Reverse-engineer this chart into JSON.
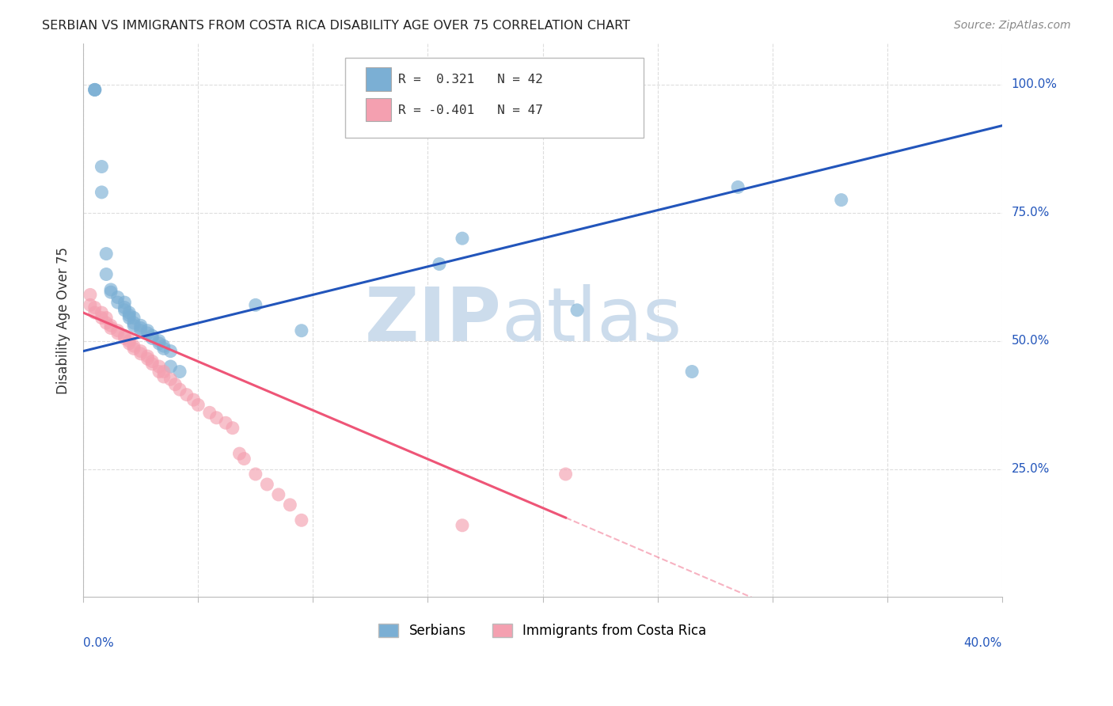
{
  "title": "SERBIAN VS IMMIGRANTS FROM COSTA RICA DISABILITY AGE OVER 75 CORRELATION CHART",
  "source": "Source: ZipAtlas.com",
  "ylabel": "Disability Age Over 75",
  "xlim": [
    0.0,
    0.4
  ],
  "ylim": [
    0.0,
    1.08
  ],
  "blue_color": "#7bafd4",
  "pink_color": "#f4a0b0",
  "blue_line_color": "#2255bb",
  "pink_line_color": "#ee5577",
  "blue_line": [
    [
      0.0,
      0.48
    ],
    [
      0.4,
      0.92
    ]
  ],
  "pink_line_solid": [
    [
      0.0,
      0.555
    ],
    [
      0.21,
      0.155
    ]
  ],
  "pink_line_dash": [
    [
      0.21,
      0.155
    ],
    [
      0.4,
      -0.21
    ]
  ],
  "blue_scatter": [
    [
      0.005,
      0.99
    ],
    [
      0.005,
      0.99
    ],
    [
      0.005,
      0.99
    ],
    [
      0.008,
      0.84
    ],
    [
      0.008,
      0.79
    ],
    [
      0.01,
      0.67
    ],
    [
      0.01,
      0.63
    ],
    [
      0.012,
      0.6
    ],
    [
      0.012,
      0.595
    ],
    [
      0.015,
      0.585
    ],
    [
      0.015,
      0.575
    ],
    [
      0.018,
      0.575
    ],
    [
      0.018,
      0.565
    ],
    [
      0.018,
      0.56
    ],
    [
      0.02,
      0.555
    ],
    [
      0.02,
      0.55
    ],
    [
      0.02,
      0.545
    ],
    [
      0.022,
      0.545
    ],
    [
      0.022,
      0.535
    ],
    [
      0.022,
      0.53
    ],
    [
      0.025,
      0.53
    ],
    [
      0.025,
      0.525
    ],
    [
      0.025,
      0.52
    ],
    [
      0.028,
      0.52
    ],
    [
      0.028,
      0.515
    ],
    [
      0.03,
      0.51
    ],
    [
      0.03,
      0.505
    ],
    [
      0.033,
      0.5
    ],
    [
      0.033,
      0.495
    ],
    [
      0.035,
      0.49
    ],
    [
      0.035,
      0.485
    ],
    [
      0.038,
      0.48
    ],
    [
      0.038,
      0.45
    ],
    [
      0.042,
      0.44
    ],
    [
      0.075,
      0.57
    ],
    [
      0.095,
      0.52
    ],
    [
      0.155,
      0.65
    ],
    [
      0.165,
      0.7
    ],
    [
      0.215,
      0.56
    ],
    [
      0.265,
      0.44
    ],
    [
      0.285,
      0.8
    ],
    [
      0.33,
      0.775
    ]
  ],
  "pink_scatter": [
    [
      0.003,
      0.59
    ],
    [
      0.003,
      0.57
    ],
    [
      0.005,
      0.565
    ],
    [
      0.005,
      0.555
    ],
    [
      0.008,
      0.555
    ],
    [
      0.008,
      0.545
    ],
    [
      0.01,
      0.545
    ],
    [
      0.01,
      0.535
    ],
    [
      0.012,
      0.53
    ],
    [
      0.012,
      0.525
    ],
    [
      0.015,
      0.52
    ],
    [
      0.015,
      0.515
    ],
    [
      0.018,
      0.51
    ],
    [
      0.018,
      0.505
    ],
    [
      0.02,
      0.5
    ],
    [
      0.02,
      0.495
    ],
    [
      0.022,
      0.49
    ],
    [
      0.022,
      0.485
    ],
    [
      0.025,
      0.48
    ],
    [
      0.025,
      0.475
    ],
    [
      0.028,
      0.47
    ],
    [
      0.028,
      0.465
    ],
    [
      0.03,
      0.46
    ],
    [
      0.03,
      0.455
    ],
    [
      0.033,
      0.45
    ],
    [
      0.033,
      0.44
    ],
    [
      0.035,
      0.44
    ],
    [
      0.035,
      0.43
    ],
    [
      0.038,
      0.425
    ],
    [
      0.04,
      0.415
    ],
    [
      0.042,
      0.405
    ],
    [
      0.045,
      0.395
    ],
    [
      0.048,
      0.385
    ],
    [
      0.05,
      0.375
    ],
    [
      0.055,
      0.36
    ],
    [
      0.058,
      0.35
    ],
    [
      0.062,
      0.34
    ],
    [
      0.065,
      0.33
    ],
    [
      0.068,
      0.28
    ],
    [
      0.07,
      0.27
    ],
    [
      0.075,
      0.24
    ],
    [
      0.08,
      0.22
    ],
    [
      0.085,
      0.2
    ],
    [
      0.09,
      0.18
    ],
    [
      0.095,
      0.15
    ],
    [
      0.21,
      0.24
    ],
    [
      0.165,
      0.14
    ]
  ],
  "background_color": "#ffffff",
  "grid_color": "#dddddd",
  "watermark_color": "#ccdcec"
}
